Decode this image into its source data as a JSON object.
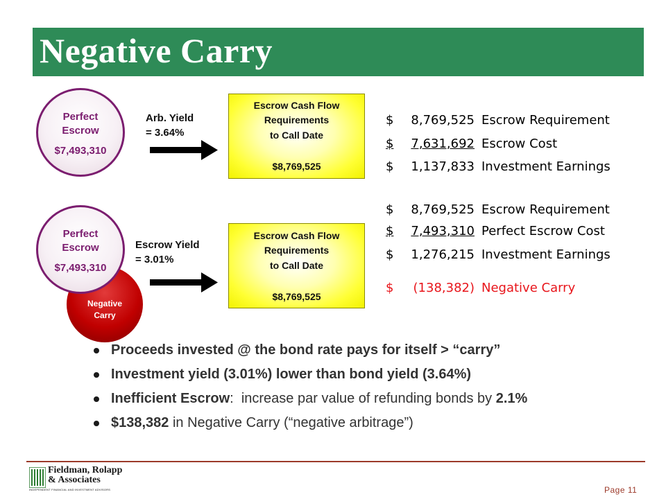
{
  "slide": {
    "title": "Negative Carry",
    "accent_color": "#2e8b57",
    "alert_color": "#e8151b"
  },
  "scenarios": [
    {
      "circle_line1": "Perfect",
      "circle_line2": "Escrow",
      "circle_amount": "$7,493,310",
      "yield_line1": "Arb. Yield",
      "yield_line2": "= 3.64%",
      "box_line1": "Escrow Cash Flow",
      "box_line2": "Requirements",
      "box_line3": "to Call Date",
      "box_amount": "$8,769,525",
      "rows": [
        {
          "dollar": "$",
          "value": "8,769,525",
          "label": "Escrow Requirement"
        },
        {
          "dollar": "$",
          "value": "7,631,692",
          "label": "Escrow Cost"
        },
        {
          "dollar": "$",
          "value": "1,137,833",
          "label": "Investment Earnings"
        }
      ]
    },
    {
      "circle_line1": "Perfect",
      "circle_line2": "Escrow",
      "circle_amount": "$7,493,310",
      "badge_line1": "Negative",
      "badge_line2": "Carry",
      "yield_line1": "Escrow Yield",
      "yield_line2": "= 3.01%",
      "box_line1": "Escrow Cash Flow",
      "box_line2": "Requirements",
      "box_line3": "to Call Date",
      "box_amount": "$8,769,525",
      "rows": [
        {
          "dollar": "$",
          "value": "8,769,525",
          "label": "Escrow Requirement"
        },
        {
          "dollar": "$",
          "value": "7,493,310",
          "label": "Perfect Escrow Cost"
        },
        {
          "dollar": "$",
          "value": "1,276,215",
          "label": "Investment Earnings"
        },
        {
          "dollar": "$",
          "value": "(138,382)",
          "label": "Negative Carry"
        }
      ]
    }
  ],
  "bullets": [
    {
      "bold": "Proceeds invested @ the bond rate pays for itself  > “carry”",
      "rest": "",
      "bold2": ""
    },
    {
      "bold": "Investment yield (3.01%) lower than bond yield (3.64%)",
      "rest": "",
      "bold2": ""
    },
    {
      "bold": "Inefficient Escrow",
      "rest": ":  increase par value of refunding bonds by ",
      "bold2": "2.1%"
    },
    {
      "bold": "$138,382",
      "rest": " in Negative Carry (“negative arbitrage”)",
      "bold2": ""
    }
  ],
  "footer": {
    "logo_line1": "Fieldman, Rolapp",
    "logo_line2": "& Associates",
    "logo_tagline": "INDEPENDENT FINANCIAL AND INVESTMENT ADVISORS",
    "page_label": "Page 11"
  }
}
